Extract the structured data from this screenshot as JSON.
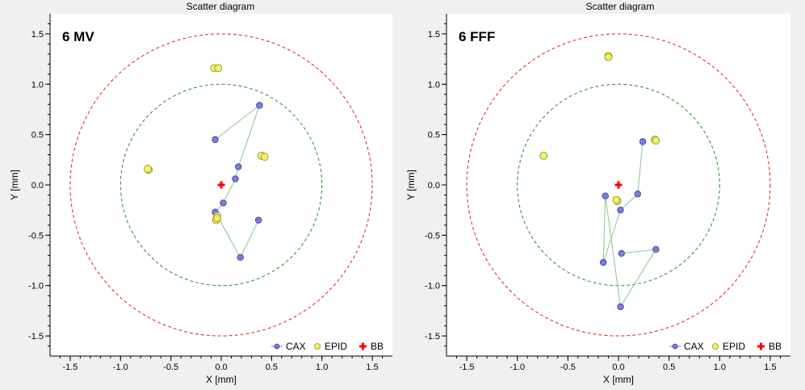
{
  "chart_data": [
    {
      "type": "scatter",
      "title": "Scatter diagram",
      "inset_label": "6 MV",
      "xlabel": "X [mm]",
      "ylabel": "Y [mm]",
      "xlim": [
        -1.7,
        1.7
      ],
      "ylim": [
        -1.7,
        1.7
      ],
      "xticks": [
        -1.5,
        -1.0,
        -0.5,
        0.0,
        0.5,
        1.0,
        1.5
      ],
      "yticks": [
        -1.5,
        -1.0,
        -0.5,
        0.0,
        0.5,
        1.0,
        1.5
      ],
      "circles": [
        {
          "radius": 1.0,
          "color": "#2e8b2e",
          "style": "dashed"
        },
        {
          "radius": 1.5,
          "color": "#e02020",
          "style": "dashed"
        }
      ],
      "series": [
        {
          "name": "CAX",
          "marker": "circle",
          "color": "#7b7bdb",
          "line_color": "#88c888",
          "points": [
            [
              -0.06,
              0.45
            ],
            [
              0.38,
              0.79
            ],
            [
              0.17,
              0.18
            ],
            [
              0.14,
              0.06
            ],
            [
              0.02,
              -0.18
            ],
            [
              -0.06,
              -0.27
            ],
            [
              0.19,
              -0.72
            ],
            [
              0.37,
              -0.35
            ]
          ]
        },
        {
          "name": "EPID",
          "marker": "circle",
          "color": "#f2f25a",
          "points": [
            [
              -0.07,
              1.16
            ],
            [
              -0.03,
              1.16
            ],
            [
              -0.72,
              0.15
            ],
            [
              -0.73,
              0.16
            ],
            [
              0.4,
              0.29
            ],
            [
              0.43,
              0.28
            ],
            [
              -0.04,
              -0.31
            ],
            [
              -0.05,
              -0.35
            ],
            [
              -0.04,
              -0.33
            ]
          ]
        },
        {
          "name": "BB",
          "marker": "plus",
          "color": "#ff0000",
          "points": [
            [
              0.0,
              0.0
            ]
          ]
        }
      ],
      "legend": {
        "position": "bottom-right",
        "entries": [
          "CAX",
          "EPID",
          "BB"
        ]
      }
    },
    {
      "type": "scatter",
      "title": "Scatter diagram",
      "inset_label": "6 FFF",
      "xlabel": "X [mm]",
      "ylabel": "Y [mm]",
      "xlim": [
        -1.7,
        1.7
      ],
      "ylim": [
        -1.7,
        1.7
      ],
      "xticks": [
        -1.5,
        -1.0,
        -0.5,
        0.0,
        0.5,
        1.0,
        1.5
      ],
      "yticks": [
        -1.5,
        -1.0,
        -0.5,
        0.0,
        0.5,
        1.0,
        1.5
      ],
      "circles": [
        {
          "radius": 1.0,
          "color": "#2e8b2e",
          "style": "dashed"
        },
        {
          "radius": 1.5,
          "color": "#e02020",
          "style": "dashed"
        }
      ],
      "series": [
        {
          "name": "CAX",
          "marker": "circle",
          "color": "#7b7bdb",
          "line_color": "#88c888",
          "points": [
            [
              0.24,
              0.43
            ],
            [
              0.19,
              -0.09
            ],
            [
              0.02,
              -0.25
            ],
            [
              -0.15,
              -0.77
            ],
            [
              -0.13,
              -0.11
            ],
            [
              0.02,
              -1.21
            ],
            [
              0.37,
              -0.64
            ],
            [
              0.03,
              -0.68
            ]
          ]
        },
        {
          "name": "EPID",
          "marker": "circle",
          "color": "#f2f25a",
          "points": [
            [
              -0.1,
              1.28
            ],
            [
              -0.1,
              1.27
            ],
            [
              -0.74,
              0.29
            ],
            [
              0.36,
              0.45
            ],
            [
              0.37,
              0.44
            ],
            [
              -0.01,
              -0.16
            ],
            [
              -0.02,
              -0.15
            ]
          ]
        },
        {
          "name": "BB",
          "marker": "plus",
          "color": "#ff0000",
          "points": [
            [
              0.0,
              0.0
            ]
          ]
        }
      ],
      "legend": {
        "position": "bottom-right",
        "entries": [
          "CAX",
          "EPID",
          "BB"
        ]
      }
    }
  ]
}
